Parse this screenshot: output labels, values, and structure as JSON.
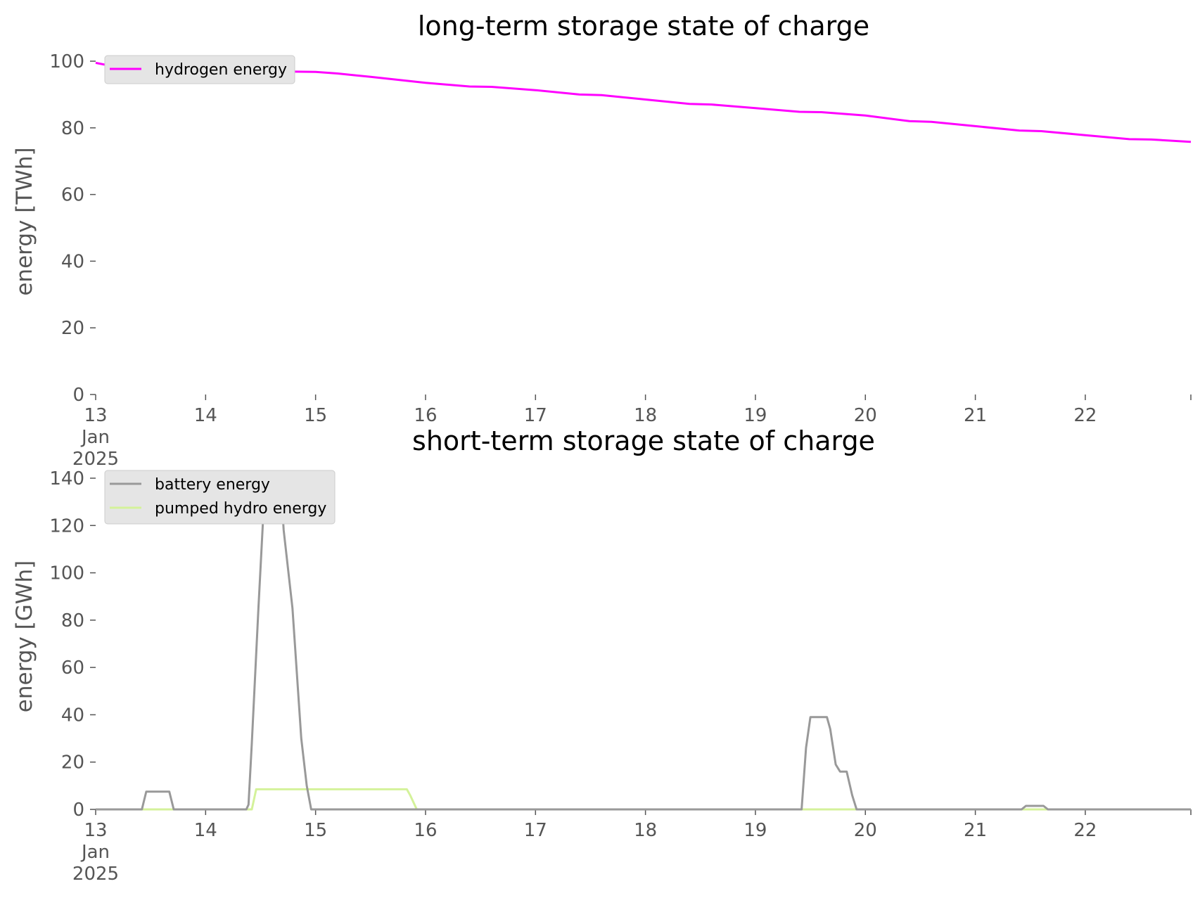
{
  "chart_data": [
    {
      "type": "line",
      "title": "long-term storage state of charge",
      "ylabel": "energy [TWh]",
      "xlabel": "",
      "ylim": [
        0,
        100
      ],
      "yticks": [
        0,
        20,
        40,
        60,
        80,
        100
      ],
      "xlim": [
        13,
        22.96
      ],
      "xticks": [
        13,
        14,
        15,
        16,
        17,
        18,
        19,
        20,
        21,
        22
      ],
      "xtick_labels": [
        "13",
        "14",
        "15",
        "16",
        "17",
        "18",
        "19",
        "20",
        "21",
        "22"
      ],
      "xtick_sublabels": [
        "Jan",
        "2025"
      ],
      "grid": false,
      "legend_position": "upper-left",
      "series": [
        {
          "name": "hydrogen energy",
          "color": "#ff00ff",
          "x": [
            13,
            13.2,
            13.5,
            14,
            14.5,
            15,
            15.2,
            15.5,
            16,
            16.4,
            16.6,
            17,
            17.4,
            17.6,
            18,
            18.4,
            18.6,
            19,
            19.4,
            19.6,
            20,
            20.4,
            20.6,
            21,
            21.4,
            21.6,
            22,
            22.4,
            22.6,
            22.96
          ],
          "y": [
            99.5,
            98.2,
            97.8,
            97.5,
            97.0,
            96.8,
            96.3,
            95.3,
            93.5,
            92.4,
            92.3,
            91.3,
            90.0,
            89.8,
            88.5,
            87.2,
            87.0,
            85.9,
            84.8,
            84.7,
            83.7,
            82.0,
            81.8,
            80.5,
            79.2,
            79.0,
            77.8,
            76.6,
            76.5,
            75.8
          ]
        }
      ]
    },
    {
      "type": "line",
      "title": "short-term storage state of charge",
      "ylabel": "energy [GWh]",
      "xlabel": "",
      "ylim": [
        0,
        140
      ],
      "yticks": [
        0,
        20,
        40,
        60,
        80,
        100,
        120,
        140
      ],
      "xlim": [
        13,
        22.96
      ],
      "xticks": [
        13,
        14,
        15,
        16,
        17,
        18,
        19,
        20,
        21,
        22
      ],
      "xtick_labels": [
        "13",
        "14",
        "15",
        "16",
        "17",
        "18",
        "19",
        "20",
        "21",
        "22"
      ],
      "xtick_sublabels": [
        "Jan",
        "2025"
      ],
      "grid": false,
      "legend_position": "upper-left",
      "series": [
        {
          "name": "battery energy",
          "color": "#999999",
          "x": [
            13,
            13.42,
            13.46,
            13.67,
            13.71,
            14.37,
            14.39,
            14.42,
            14.48,
            14.54,
            14.62,
            14.68,
            14.71,
            14.79,
            14.87,
            14.92,
            14.96,
            20,
            19.4
          ],
          "y": [
            0,
            0,
            7.5,
            7.5,
            0,
            0,
            2,
            28,
            85,
            138,
            140,
            140,
            118,
            85,
            30,
            10,
            0,
            0,
            0
          ]
        }
      ]
    }
  ],
  "battery_points": {
    "x": [
      13,
      13.42,
      13.46,
      13.67,
      13.71,
      14.37,
      14.39,
      14.42,
      14.48,
      14.54,
      14.62,
      14.68,
      14.71,
      14.79,
      14.87,
      14.92,
      14.96,
      19.42,
      19.46,
      19.5,
      19.54,
      19.65,
      19.68,
      19.73,
      19.77,
      19.83,
      19.88,
      19.92,
      21.42,
      21.46,
      21.62,
      21.66,
      22.96
    ],
    "y": [
      0,
      0,
      7.5,
      7.5,
      0,
      0,
      2,
      28,
      85,
      138,
      140,
      140,
      118,
      85,
      30,
      10,
      0,
      0,
      26,
      39,
      39,
      39,
      34,
      19,
      16,
      16,
      6,
      0,
      0,
      1.5,
      1.5,
      0,
      0
    ]
  },
  "pumped_hydro_points": {
    "name": "pumped hydro energy",
    "color": "#d4f29a",
    "x": [
      13,
      14.42,
      14.46,
      15.83,
      15.86,
      15.92,
      22.96
    ],
    "y": [
      0,
      0,
      8.5,
      8.5,
      6,
      0,
      0
    ]
  }
}
